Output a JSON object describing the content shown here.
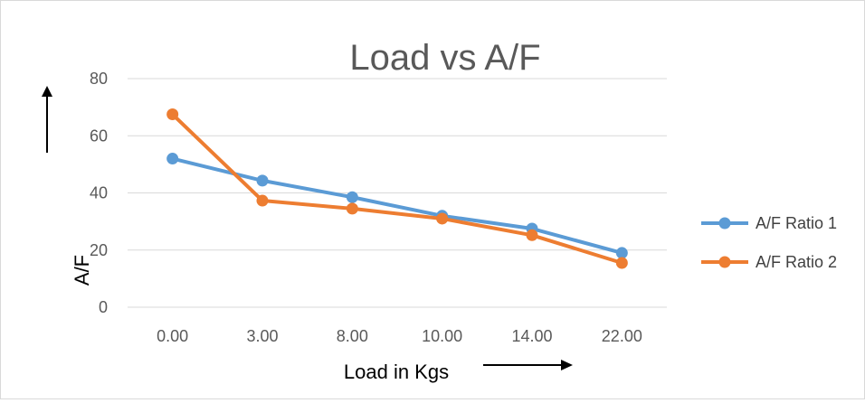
{
  "chart_data": {
    "type": "line",
    "title": "Load vs A/F",
    "xlabel": "Load in Kgs",
    "ylabel": "A/F",
    "categories": [
      "0.00",
      "3.00",
      "8.00",
      "10.00",
      "14.00",
      "22.00"
    ],
    "y_ticks": [
      "0",
      "20",
      "40",
      "60",
      "80"
    ],
    "ylim": [
      0,
      80
    ],
    "grid": true,
    "legend_position": "right",
    "series": [
      {
        "name": "A/F Ratio 1",
        "color": "#5b9bd5",
        "values": [
          52,
          44.3,
          38.5,
          32,
          27.5,
          19
        ]
      },
      {
        "name": "A/F Ratio 2",
        "color": "#ed7d31",
        "values": [
          67.5,
          37.3,
          34.5,
          31,
          25.2,
          15.5
        ]
      }
    ]
  }
}
